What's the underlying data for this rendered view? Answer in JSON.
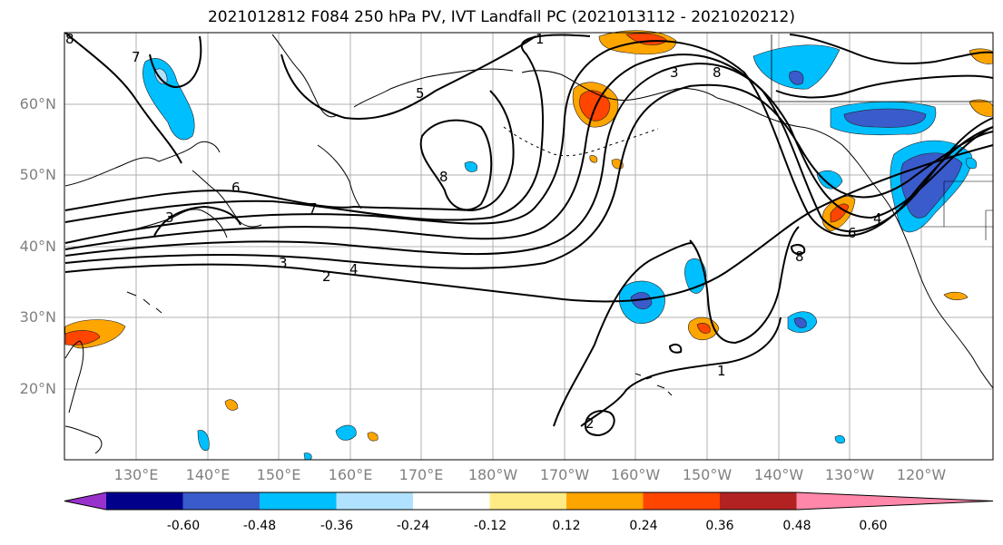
{
  "title": "2021012812 F084 250 hPa PV, IVT Landfall PC (2021013112 - 2021020212)",
  "lat_labels": [
    "60°N",
    "50°N",
    "40°N",
    "30°N",
    "20°N"
  ],
  "lon_labels": [
    "130°E",
    "140°E",
    "150°E",
    "160°E",
    "170°E",
    "180°W",
    "170°W",
    "160°W",
    "150°W",
    "140°W",
    "130°W",
    "120°W"
  ],
  "colorbar": {
    "colors": [
      "#9932cc",
      "#00008b",
      "#3a5bcb",
      "#00bfff",
      "#b0e2ff",
      "#ffffff",
      "#ffeb85",
      "#ffa500",
      "#ff4500",
      "#b22222",
      "#ff88aa"
    ],
    "labels": [
      "-0.60",
      "-0.48",
      "-0.36",
      "-0.24",
      "-0.12",
      "0.12",
      "0.24",
      "0.36",
      "0.48",
      "0.60"
    ]
  },
  "contour_labels": [
    "1",
    "2",
    "3",
    "4",
    "5",
    "6",
    "7",
    "8",
    "2",
    "3",
    "3",
    "7",
    "8",
    "8",
    "6",
    "4",
    "8",
    "1"
  ]
}
